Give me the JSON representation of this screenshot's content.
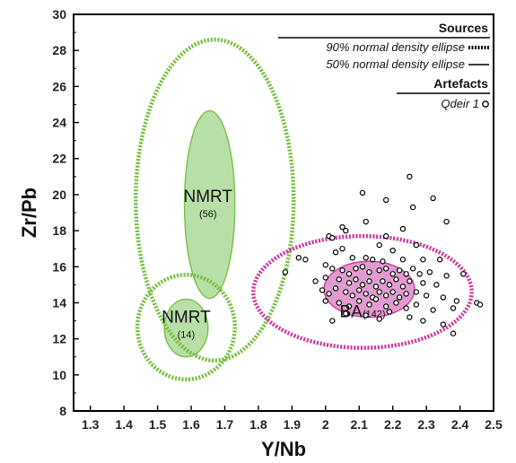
{
  "chart_data": {
    "type": "scatter",
    "xlabel": "Y/Nb",
    "ylabel": "Zr/Pb",
    "xlim": [
      1.25,
      2.5
    ],
    "ylim": [
      8,
      30
    ],
    "x_ticks": [
      "1.3",
      "1.4",
      "1.5",
      "1.6",
      "1.7",
      "1.8",
      "1.9",
      "2",
      "2.1",
      "2.2",
      "2.3",
      "2.4",
      "2.5"
    ],
    "y_ticks": [
      "8",
      "10",
      "12",
      "14",
      "16",
      "18",
      "20",
      "22",
      "24",
      "26",
      "28",
      "30"
    ],
    "grid": false,
    "legend": {
      "position": "top-right",
      "sources_title": "Sources",
      "ellipse_90_label": "90% normal density ellipse",
      "ellipse_50_label": "50% normal density ellipse",
      "artefacts_title": "Artefacts",
      "artefact_label": "Qdeir 1"
    },
    "colors": {
      "nmrt": "#78c043",
      "nmrt_fill": "#b9dfa8",
      "ba": "#c93fa0",
      "ba_fill": "#e29bd0"
    },
    "ellipses": [
      {
        "group": "NMRT (56)",
        "level": "90%",
        "cx": 1.67,
        "cy": 19.7,
        "rx": 0.235,
        "ry": 8.9
      },
      {
        "group": "NMRT (56)",
        "level": "50%",
        "cx": 1.655,
        "cy": 19.45,
        "rx": 0.075,
        "ry": 5.2
      },
      {
        "group": "NMRT (14)",
        "level": "90%",
        "cx": 1.585,
        "cy": 12.65,
        "rx": 0.145,
        "ry": 2.9
      },
      {
        "group": "NMRT (14)",
        "level": "50%",
        "cx": 1.585,
        "cy": 12.6,
        "rx": 0.065,
        "ry": 1.6
      },
      {
        "group": "BA (142)",
        "level": "90%",
        "cx": 2.11,
        "cy": 14.6,
        "rx": 0.325,
        "ry": 3.1
      },
      {
        "group": "BA (142)",
        "level": "50%",
        "cx": 2.13,
        "cy": 14.75,
        "rx": 0.135,
        "ry": 1.55
      }
    ],
    "group_labels": [
      {
        "name": "NMRT",
        "count": "(56)",
        "x": 1.65,
        "y": 19.6
      },
      {
        "name": "NMRT",
        "count": "(14)",
        "x": 1.585,
        "y": 12.9
      },
      {
        "name": "BA",
        "count": "(142)",
        "x": 2.11,
        "y": 13.2
      }
    ],
    "series": [
      {
        "name": "Qdeir 1",
        "points": [
          [
            2.25,
            21.0
          ],
          [
            2.11,
            20.1
          ],
          [
            2.26,
            19.3
          ],
          [
            2.18,
            19.7
          ],
          [
            2.32,
            19.8
          ],
          [
            2.36,
            18.5
          ],
          [
            2.12,
            18.5
          ],
          [
            2.23,
            18.1
          ],
          [
            2.05,
            18.2
          ],
          [
            2.06,
            18.0
          ],
          [
            2.01,
            17.7
          ],
          [
            2.02,
            17.6
          ],
          [
            2.18,
            17.7
          ],
          [
            2.16,
            17.2
          ],
          [
            2.27,
            17.2
          ],
          [
            2.05,
            17.0
          ],
          [
            2.03,
            16.8
          ],
          [
            2.2,
            16.9
          ],
          [
            2.08,
            16.5
          ],
          [
            2.12,
            16.5
          ],
          [
            2.14,
            16.4
          ],
          [
            2.17,
            16.3
          ],
          [
            2.23,
            16.4
          ],
          [
            2.29,
            16.4
          ],
          [
            2.34,
            16.4
          ],
          [
            1.92,
            16.5
          ],
          [
            1.94,
            16.4
          ],
          [
            1.88,
            15.7
          ],
          [
            2.0,
            16.1
          ],
          [
            2.02,
            15.9
          ],
          [
            2.05,
            15.8
          ],
          [
            2.07,
            15.6
          ],
          [
            2.09,
            15.9
          ],
          [
            2.11,
            16.0
          ],
          [
            2.13,
            15.7
          ],
          [
            2.16,
            15.8
          ],
          [
            2.18,
            15.9
          ],
          [
            2.2,
            15.6
          ],
          [
            2.22,
            15.8
          ],
          [
            2.24,
            15.6
          ],
          [
            2.26,
            15.9
          ],
          [
            2.28,
            15.6
          ],
          [
            2.31,
            15.7
          ],
          [
            2.36,
            15.5
          ],
          [
            2.41,
            15.6
          ],
          [
            1.97,
            15.2
          ],
          [
            2.0,
            15.4
          ],
          [
            2.04,
            15.3
          ],
          [
            2.07,
            15.1
          ],
          [
            2.09,
            15.3
          ],
          [
            2.11,
            15.0
          ],
          [
            2.13,
            15.2
          ],
          [
            2.15,
            14.9
          ],
          [
            2.17,
            15.2
          ],
          [
            2.19,
            15.0
          ],
          [
            2.21,
            15.3
          ],
          [
            2.23,
            14.9
          ],
          [
            2.25,
            15.2
          ],
          [
            2.29,
            15.1
          ],
          [
            2.33,
            15.0
          ],
          [
            1.99,
            14.7
          ],
          [
            2.01,
            14.5
          ],
          [
            2.03,
            14.8
          ],
          [
            2.06,
            14.6
          ],
          [
            2.08,
            14.4
          ],
          [
            2.1,
            14.7
          ],
          [
            2.12,
            14.5
          ],
          [
            2.14,
            14.3
          ],
          [
            2.16,
            14.6
          ],
          [
            2.18,
            14.4
          ],
          [
            2.2,
            14.6
          ],
          [
            2.22,
            14.3
          ],
          [
            2.24,
            14.5
          ],
          [
            2.27,
            14.6
          ],
          [
            2.3,
            14.4
          ],
          [
            2.35,
            14.3
          ],
          [
            2.39,
            14.1
          ],
          [
            2.45,
            14.0
          ],
          [
            2.46,
            13.9
          ],
          [
            2.0,
            14.1
          ],
          [
            2.04,
            14.0
          ],
          [
            2.07,
            13.8
          ],
          [
            2.1,
            14.1
          ],
          [
            2.13,
            13.9
          ],
          [
            2.15,
            14.2
          ],
          [
            2.18,
            13.8
          ],
          [
            2.21,
            14.0
          ],
          [
            2.24,
            13.7
          ],
          [
            2.27,
            13.9
          ],
          [
            2.32,
            13.6
          ],
          [
            2.38,
            13.7
          ],
          [
            2.06,
            13.4
          ],
          [
            2.12,
            13.3
          ],
          [
            2.19,
            13.5
          ],
          [
            2.25,
            13.2
          ],
          [
            2.35,
            12.8
          ],
          [
            2.38,
            12.3
          ],
          [
            2.02,
            13.0
          ],
          [
            2.16,
            13.1
          ],
          [
            2.29,
            13.0
          ]
        ]
      }
    ]
  }
}
